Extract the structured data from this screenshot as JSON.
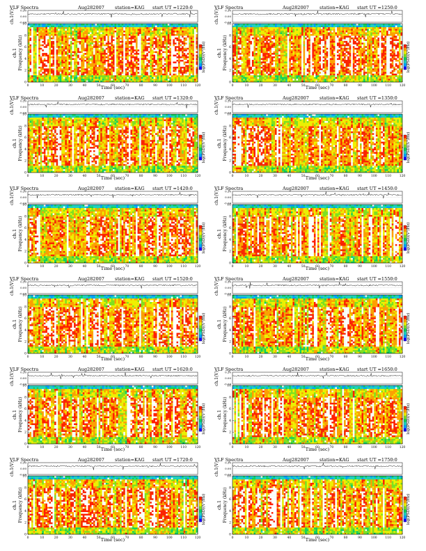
{
  "figure": {
    "colorbar_label": "log(PSD)(V²/Hz)"
  },
  "chart_data": [
    {
      "type": "heatmap",
      "title": "VLF Spectra",
      "date": "Aug282007",
      "station": "station=KAG",
      "start": "start UT =1220:0",
      "ylabel_top": "ch.1(V)",
      "ylabel_bottom": "Frequency (kHz)",
      "channel": "ch.1",
      "xlabel": "Time (sec)",
      "xlim": [
        0,
        120
      ],
      "ylim": [
        0,
        10
      ],
      "xticks": [
        0,
        10,
        20,
        30,
        40,
        50,
        60,
        70,
        80,
        90,
        100,
        110,
        120
      ],
      "yticks": [
        0,
        2,
        4,
        6,
        8,
        10
      ],
      "amp_ticks": [
        "0.20",
        "0.00",
        "-0.20"
      ],
      "amp_ylim": [
        -0.2,
        0.2
      ],
      "colorbar_ticks": [
        "1",
        "0",
        "-1"
      ],
      "colorscale": [
        "#1a00ff",
        "#00a0ff",
        "#20d0c0",
        "#10d060",
        "#80e020",
        "#f0f000",
        "#ffa000",
        "#ff2000",
        "#ffffff"
      ]
    },
    {
      "type": "heatmap",
      "title": "VLF Spectra",
      "date": "Aug282007",
      "station": "station=KAG",
      "start": "start UT =1250:0",
      "ylabel_top": "ch.1(V)",
      "ylabel_bottom": "Frequency (kHz)",
      "channel": "ch.1",
      "xlabel": "Time (sec)",
      "xlim": [
        0,
        120
      ],
      "ylim": [
        0,
        10
      ],
      "xticks": [
        0,
        10,
        20,
        30,
        40,
        50,
        60,
        70,
        80,
        90,
        100,
        110,
        120
      ],
      "yticks": [
        0,
        2,
        4,
        6,
        8,
        10
      ],
      "amp_ticks": [
        "0.20",
        "0.00",
        "-0.20"
      ],
      "amp_ylim": [
        -0.2,
        0.2
      ],
      "colorbar_ticks": [
        "1",
        "0",
        "-1"
      ],
      "colorscale": [
        "#1a00ff",
        "#00a0ff",
        "#20d0c0",
        "#10d060",
        "#80e020",
        "#f0f000",
        "#ffa000",
        "#ff2000",
        "#ffffff"
      ]
    },
    {
      "type": "heatmap",
      "title": "VLF Spectra",
      "date": "Aug282007",
      "station": "station=KAG",
      "start": "start UT =1320:0",
      "ylabel_top": "ch.1(V)",
      "ylabel_bottom": "Frequency (kHz)",
      "channel": "ch.1",
      "xlabel": "Time (sec)",
      "xlim": [
        0,
        120
      ],
      "ylim": [
        0,
        10
      ],
      "xticks": [
        0,
        10,
        20,
        30,
        40,
        50,
        60,
        70,
        80,
        90,
        100,
        110,
        120
      ],
      "yticks": [
        0,
        2,
        4,
        6,
        8,
        10
      ],
      "amp_ticks": [
        "0.20",
        "0.00",
        "-0.20"
      ],
      "amp_ylim": [
        -0.2,
        0.2
      ],
      "colorbar_ticks": [
        "1",
        "0",
        "-1"
      ],
      "colorscale": [
        "#1a00ff",
        "#00a0ff",
        "#20d0c0",
        "#10d060",
        "#80e020",
        "#f0f000",
        "#ffa000",
        "#ff2000",
        "#ffffff"
      ]
    },
    {
      "type": "heatmap",
      "title": "VLF Spectra",
      "date": "Aug282007",
      "station": "station=KAG",
      "start": "start UT =1350:0",
      "ylabel_top": "ch.1(V)",
      "ylabel_bottom": "Frequency (kHz)",
      "channel": "ch.1",
      "xlabel": "Time (sec)",
      "xlim": [
        0,
        120
      ],
      "ylim": [
        0,
        10
      ],
      "xticks": [
        0,
        10,
        20,
        30,
        40,
        50,
        60,
        70,
        80,
        90,
        100,
        110,
        120
      ],
      "yticks": [
        0,
        2,
        4,
        6,
        8,
        10
      ],
      "amp_ticks": [
        "0.20",
        "0.00",
        "-0.20"
      ],
      "amp_ylim": [
        -0.2,
        0.2
      ],
      "colorbar_ticks": [
        "1",
        "0",
        "-1"
      ],
      "colorscale": [
        "#1a00ff",
        "#00a0ff",
        "#20d0c0",
        "#10d060",
        "#80e020",
        "#f0f000",
        "#ffa000",
        "#ff2000",
        "#ffffff"
      ]
    },
    {
      "type": "heatmap",
      "title": "VLF Spectra",
      "date": "Aug282007",
      "station": "station=KAG",
      "start": "start UT =1420:0",
      "ylabel_top": "ch.1(V)",
      "ylabel_bottom": "Frequency (kHz)",
      "channel": "ch.1",
      "xlabel": "Time (sec)",
      "xlim": [
        0,
        120
      ],
      "ylim": [
        0,
        10
      ],
      "xticks": [
        0,
        10,
        20,
        30,
        40,
        50,
        60,
        70,
        80,
        90,
        100,
        110,
        120
      ],
      "yticks": [
        0,
        2,
        4,
        6,
        8,
        10
      ],
      "amp_ticks": [
        "0.20",
        "0.00",
        "-0.20"
      ],
      "amp_ylim": [
        -0.2,
        0.2
      ],
      "colorbar_ticks": [
        "1",
        "0",
        "-1"
      ],
      "colorscale": [
        "#1a00ff",
        "#00a0ff",
        "#20d0c0",
        "#10d060",
        "#80e020",
        "#f0f000",
        "#ffa000",
        "#ff2000",
        "#ffffff"
      ]
    },
    {
      "type": "heatmap",
      "title": "VLF Spectra",
      "date": "Aug282007",
      "station": "station=KAG",
      "start": "start UT =1450:0",
      "ylabel_top": "ch.1(V)",
      "ylabel_bottom": "Frequency (kHz)",
      "channel": "ch.1",
      "xlabel": "Time (sec)",
      "xlim": [
        0,
        120
      ],
      "ylim": [
        0,
        10
      ],
      "xticks": [
        0,
        10,
        20,
        30,
        40,
        50,
        60,
        70,
        80,
        90,
        100,
        110,
        120
      ],
      "yticks": [
        0,
        2,
        4,
        6,
        8,
        10
      ],
      "amp_ticks": [
        "0.20",
        "0.00",
        "-0.20"
      ],
      "amp_ylim": [
        -0.2,
        0.2
      ],
      "colorbar_ticks": [
        "1",
        "0",
        "-1"
      ],
      "colorscale": [
        "#1a00ff",
        "#00a0ff",
        "#20d0c0",
        "#10d060",
        "#80e020",
        "#f0f000",
        "#ffa000",
        "#ff2000",
        "#ffffff"
      ]
    },
    {
      "type": "heatmap",
      "title": "VLF Spectra",
      "date": "Aug282007",
      "station": "station=KAG",
      "start": "start UT =1520:0",
      "ylabel_top": "ch.1(V)",
      "ylabel_bottom": "Frequency (kHz)",
      "channel": "ch.1",
      "xlabel": "Time (sec)",
      "xlim": [
        0,
        120
      ],
      "ylim": [
        0,
        10
      ],
      "xticks": [
        0,
        10,
        20,
        30,
        40,
        50,
        60,
        70,
        80,
        90,
        100,
        110,
        120
      ],
      "yticks": [
        0,
        2,
        4,
        6,
        8,
        10
      ],
      "amp_ticks": [
        "0.20",
        "0.00",
        "-0.20"
      ],
      "amp_ylim": [
        -0.2,
        0.2
      ],
      "colorbar_ticks": [
        "1",
        "0",
        "-1"
      ],
      "colorscale": [
        "#1a00ff",
        "#00a0ff",
        "#20d0c0",
        "#10d060",
        "#80e020",
        "#f0f000",
        "#ffa000",
        "#ff2000",
        "#ffffff"
      ]
    },
    {
      "type": "heatmap",
      "title": "VLF Spectra",
      "date": "Aug282007",
      "station": "station=KAG",
      "start": "start UT =1550:0",
      "ylabel_top": "ch.1(V)",
      "ylabel_bottom": "Frequency (kHz)",
      "channel": "ch.1",
      "xlabel": "Time (sec)",
      "xlim": [
        0,
        120
      ],
      "ylim": [
        0,
        10
      ],
      "xticks": [
        0,
        10,
        20,
        30,
        40,
        50,
        60,
        70,
        80,
        90,
        100,
        110,
        120
      ],
      "yticks": [
        0,
        2,
        4,
        6,
        8,
        10
      ],
      "amp_ticks": [
        "0.20",
        "0.00",
        "-0.20"
      ],
      "amp_ylim": [
        -0.2,
        0.2
      ],
      "colorbar_ticks": [
        "1",
        "0",
        "-1"
      ],
      "colorscale": [
        "#1a00ff",
        "#00a0ff",
        "#20d0c0",
        "#10d060",
        "#80e020",
        "#f0f000",
        "#ffa000",
        "#ff2000",
        "#ffffff"
      ]
    },
    {
      "type": "heatmap",
      "title": "VLF Spectra",
      "date": "Aug282007",
      "station": "station=KAG",
      "start": "start UT =1620:0",
      "ylabel_top": "ch.1(V)",
      "ylabel_bottom": "Frequency (kHz)",
      "channel": "ch.1",
      "xlabel": "Time (sec)",
      "xlim": [
        0,
        120
      ],
      "ylim": [
        0,
        10
      ],
      "xticks": [
        0,
        10,
        20,
        30,
        40,
        50,
        60,
        70,
        80,
        90,
        100,
        110,
        120
      ],
      "yticks": [
        0,
        2,
        4,
        6,
        8,
        10
      ],
      "amp_ticks": [
        "0.20",
        "0.00",
        "-0.20"
      ],
      "amp_ylim": [
        -0.2,
        0.2
      ],
      "colorbar_ticks": [
        "1",
        "0",
        "-1"
      ],
      "colorscale": [
        "#1a00ff",
        "#00a0ff",
        "#20d0c0",
        "#10d060",
        "#80e020",
        "#f0f000",
        "#ffa000",
        "#ff2000",
        "#ffffff"
      ]
    },
    {
      "type": "heatmap",
      "title": "VLF Spectra",
      "date": "Aug282007",
      "station": "station=KAG",
      "start": "start UT =1650:0",
      "ylabel_top": "ch.1(V)",
      "ylabel_bottom": "Frequency (kHz)",
      "channel": "ch.1",
      "xlabel": "Time (sec)",
      "xlim": [
        0,
        120
      ],
      "ylim": [
        0,
        10
      ],
      "xticks": [
        0,
        10,
        20,
        30,
        40,
        50,
        60,
        70,
        80,
        90,
        100,
        110,
        120
      ],
      "yticks": [
        0,
        2,
        4,
        6,
        8,
        10
      ],
      "amp_ticks": [
        "0.20",
        "0.00",
        "-0.20"
      ],
      "amp_ylim": [
        -0.2,
        0.2
      ],
      "colorbar_ticks": [
        "1",
        "0",
        "-1"
      ],
      "colorscale": [
        "#1a00ff",
        "#00a0ff",
        "#20d0c0",
        "#10d060",
        "#80e020",
        "#f0f000",
        "#ffa000",
        "#ff2000",
        "#ffffff"
      ]
    },
    {
      "type": "heatmap",
      "title": "VLF Spectra",
      "date": "Aug282007",
      "station": "station=KAG",
      "start": "start UT =1720:0",
      "ylabel_top": "ch.1(V)",
      "ylabel_bottom": "Frequency (kHz)",
      "channel": "ch.1",
      "xlabel": "Time (sec)",
      "xlim": [
        0,
        120
      ],
      "ylim": [
        0,
        10
      ],
      "xticks": [
        0,
        10,
        20,
        30,
        40,
        50,
        60,
        70,
        80,
        90,
        100,
        110,
        120
      ],
      "yticks": [
        0,
        2,
        4,
        6,
        8,
        10
      ],
      "amp_ticks": [
        "0.20",
        "0.00",
        "-0.20"
      ],
      "amp_ylim": [
        -0.2,
        0.2
      ],
      "colorbar_ticks": [
        "1",
        "0",
        "-1"
      ],
      "colorscale": [
        "#1a00ff",
        "#00a0ff",
        "#20d0c0",
        "#10d060",
        "#80e020",
        "#f0f000",
        "#ffa000",
        "#ff2000",
        "#ffffff"
      ]
    },
    {
      "type": "heatmap",
      "title": "VLF Spectra",
      "date": "Aug282007",
      "station": "station=KAG",
      "start": "start UT =1750:0",
      "ylabel_top": "ch.1(V)",
      "ylabel_bottom": "Frequency (kHz)",
      "channel": "ch.1",
      "xlabel": "Time (sec)",
      "xlim": [
        0,
        120
      ],
      "ylim": [
        0,
        10
      ],
      "xticks": [
        0,
        10,
        20,
        30,
        40,
        50,
        60,
        70,
        80,
        90,
        100,
        110,
        120
      ],
      "yticks": [
        0,
        2,
        4,
        6,
        8,
        10
      ],
      "amp_ticks": [
        "0.20",
        "0.00",
        "-0.20"
      ],
      "amp_ylim": [
        -0.2,
        0.2
      ],
      "colorbar_ticks": [
        "1",
        "0",
        "-1"
      ],
      "colorscale": [
        "#1a00ff",
        "#00a0ff",
        "#20d0c0",
        "#10d060",
        "#80e020",
        "#f0f000",
        "#ffa000",
        "#ff2000",
        "#ffffff"
      ]
    }
  ]
}
